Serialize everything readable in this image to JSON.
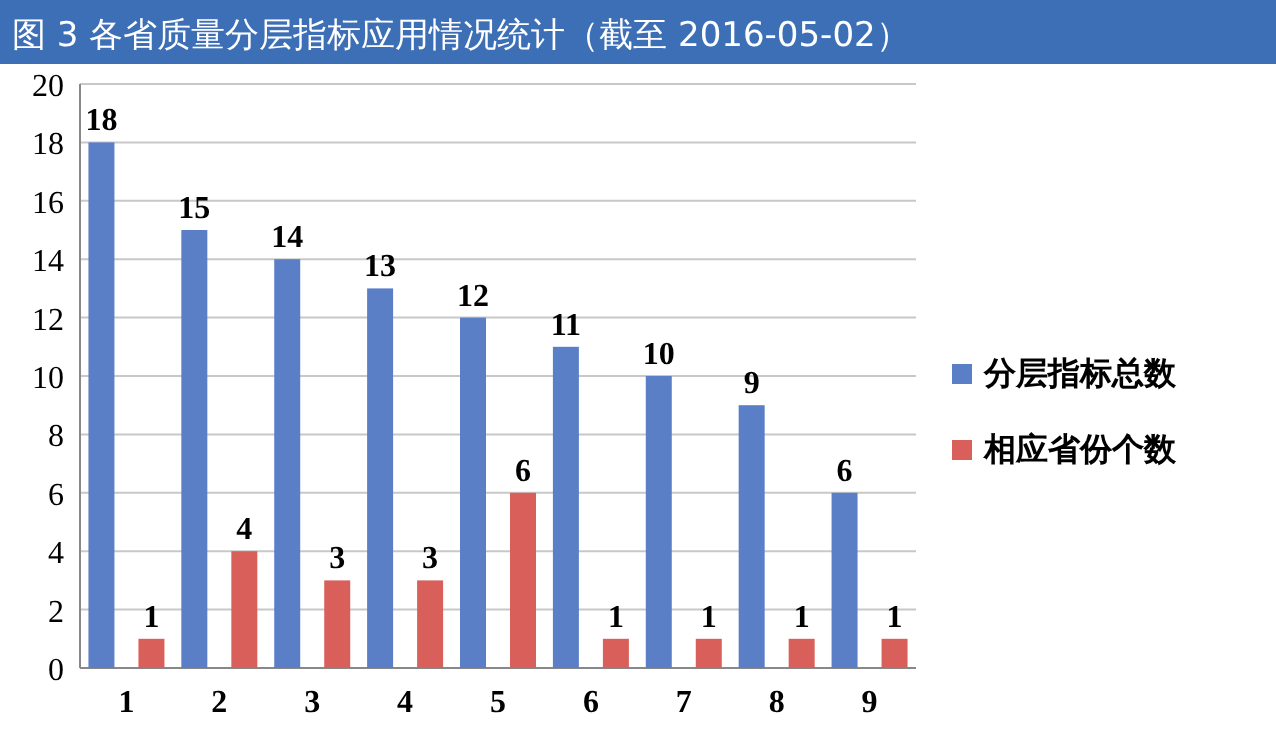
{
  "chart_data": {
    "type": "bar",
    "title": "图 3 各省质量分层指标应用情况统计（截至 2016-05-02）",
    "categories": [
      "1",
      "2",
      "3",
      "4",
      "5",
      "6",
      "7",
      "8",
      "9"
    ],
    "series": [
      {
        "name": "分层指标总数",
        "color": "#5b7fc7",
        "values": [
          18,
          15,
          14,
          13,
          12,
          11,
          10,
          9,
          6
        ]
      },
      {
        "name": "相应省份个数",
        "color": "#d9605a",
        "values": [
          1,
          4,
          3,
          3,
          6,
          1,
          1,
          1,
          1
        ]
      }
    ],
    "ylim": [
      0,
      20
    ],
    "yticks": [
      0,
      2,
      4,
      6,
      8,
      10,
      12,
      14,
      16,
      18,
      20
    ],
    "grid": "y",
    "legend": "right",
    "data_labels": true
  }
}
